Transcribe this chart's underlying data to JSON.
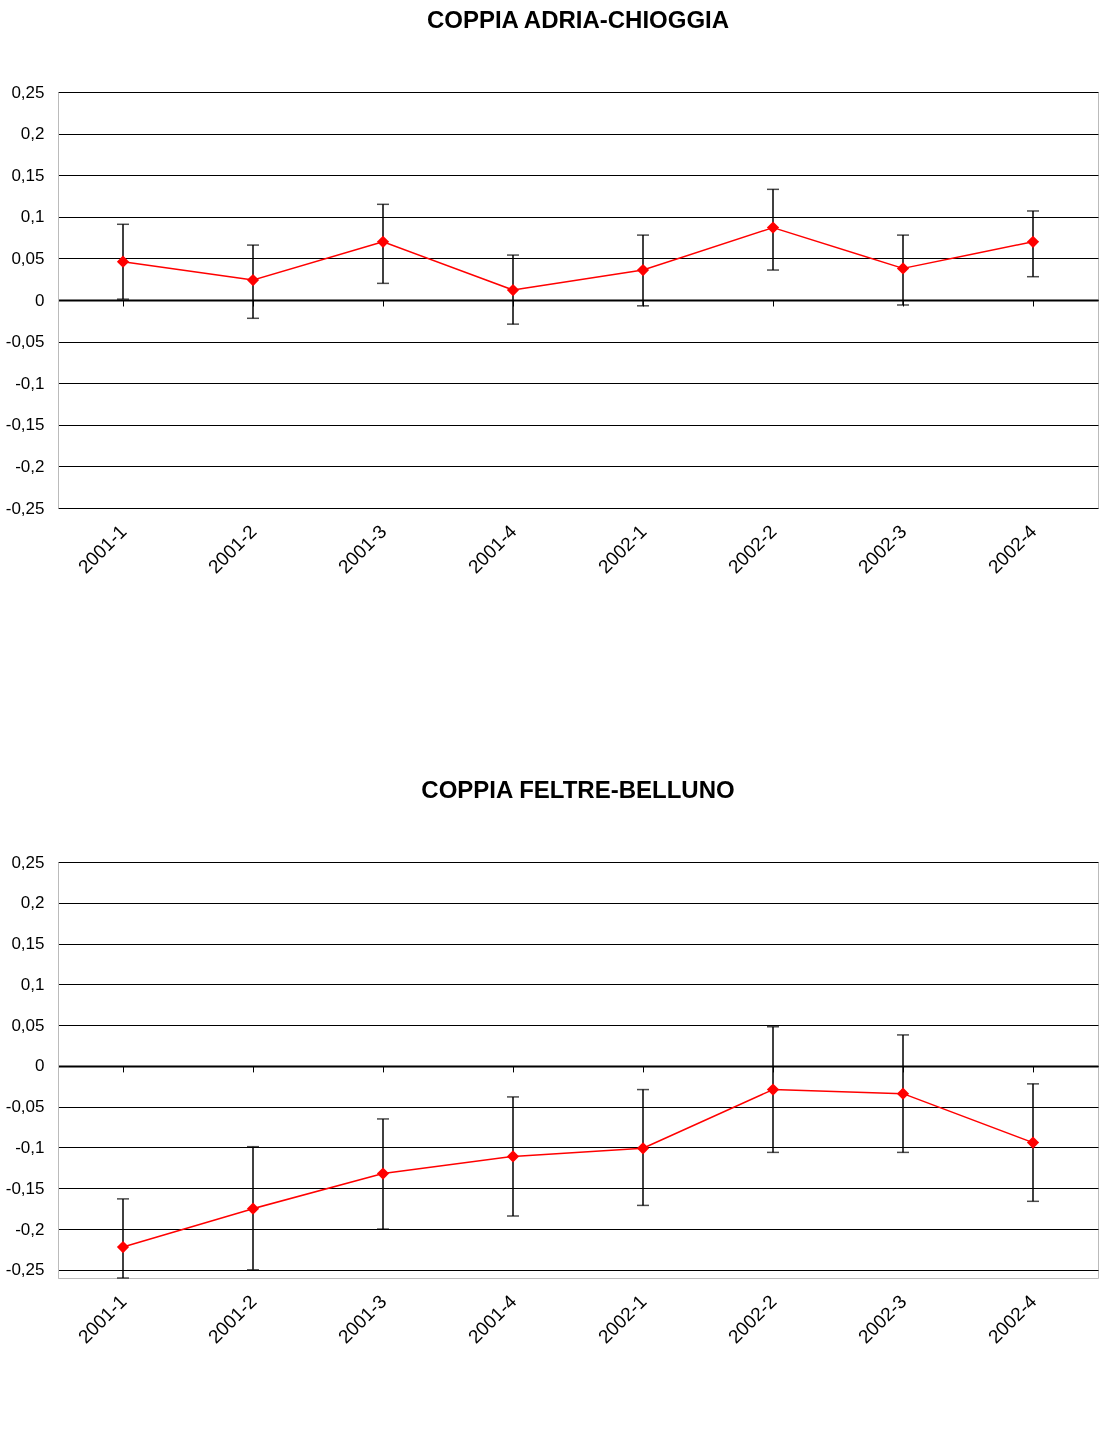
{
  "chart_data": [
    {
      "type": "line",
      "title": "COPPIA ADRIA-CHIOGGIA",
      "categories": [
        "2001-1",
        "2001-2",
        "2001-3",
        "2001-4",
        "2002-1",
        "2002-2",
        "2002-3",
        "2002-4"
      ],
      "series": [
        {
          "color": "#ff0000",
          "values": [
            0.046,
            0.024,
            0.07,
            0.012,
            0.036,
            0.087,
            0.038,
            0.07
          ],
          "errors": [
            [
              0.001,
              0.091
            ],
            [
              -0.022,
              0.066
            ],
            [
              0.02,
              0.115
            ],
            [
              -0.029,
              0.054
            ],
            [
              -0.007,
              0.078
            ],
            [
              0.036,
              0.133
            ],
            [
              -0.006,
              0.078
            ],
            [
              0.028,
              0.107
            ]
          ]
        }
      ],
      "ylim": [
        -0.25,
        0.25
      ],
      "yticks": [
        {
          "value": -0.25,
          "label": "-0,25"
        },
        {
          "value": -0.2,
          "label": "-0,2"
        },
        {
          "value": -0.15,
          "label": "-0,15"
        },
        {
          "value": -0.1,
          "label": "-0,1"
        },
        {
          "value": -0.05,
          "label": "-0,05"
        },
        0,
        {
          "value": 0.05,
          "label": "0,05"
        },
        {
          "value": 0.1,
          "label": "0,1"
        },
        {
          "value": 0.15,
          "label": "0,15"
        },
        {
          "value": 0.2,
          "label": "0,2"
        },
        {
          "value": 0.25,
          "label": "0,25"
        }
      ],
      "grid": "y",
      "marker": "diamond"
    },
    {
      "type": "line",
      "title": "COPPIA FELTRE-BELLUNO",
      "categories": [
        "2001-1",
        "2001-2",
        "2001-3",
        "2001-4",
        "2002-1",
        "2002-2",
        "2002-3",
        "2002-4"
      ],
      "series": [
        {
          "color": "#ff0000",
          "values": [
            -0.222,
            -0.175,
            -0.132,
            -0.111,
            -0.101,
            -0.029,
            -0.034,
            -0.094
          ],
          "errors": [
            [
              -0.26,
              -0.163
            ],
            [
              -0.25,
              -0.099
            ],
            [
              -0.2,
              -0.065
            ],
            [
              -0.184,
              -0.038
            ],
            [
              -0.171,
              -0.029
            ],
            [
              -0.106,
              0.048
            ],
            [
              -0.106,
              0.038
            ],
            [
              -0.166,
              -0.022
            ]
          ]
        }
      ],
      "ylim": [
        -0.26,
        0.25
      ],
      "yticks": [
        {
          "value": -0.25,
          "label": "-0,25"
        },
        {
          "value": -0.2,
          "label": "-0,2"
        },
        {
          "value": -0.15,
          "label": "-0,15"
        },
        {
          "value": -0.1,
          "label": "-0,1"
        },
        {
          "value": -0.05,
          "label": "-0,05"
        },
        0,
        {
          "value": 0.05,
          "label": "0,05"
        },
        {
          "value": 0.1,
          "label": "0,1"
        },
        {
          "value": 0.15,
          "label": "0,15"
        },
        {
          "value": 0.2,
          "label": "0,2"
        },
        {
          "value": 0.25,
          "label": "0,25"
        }
      ],
      "grid": "y",
      "marker": "diamond"
    }
  ]
}
